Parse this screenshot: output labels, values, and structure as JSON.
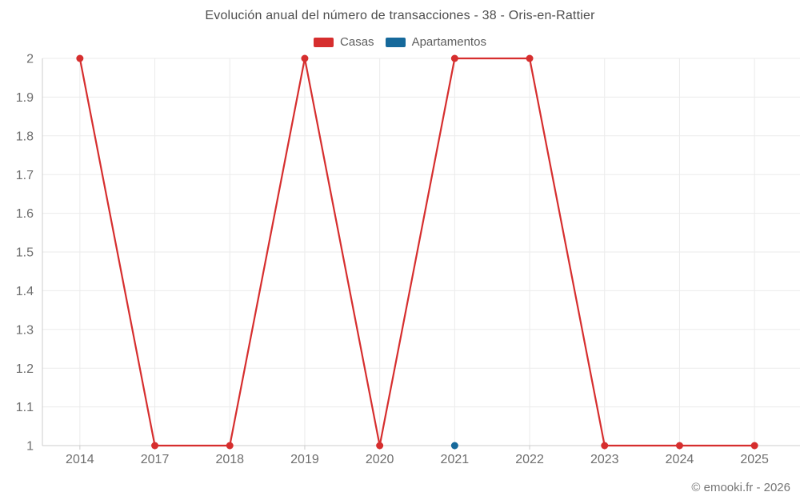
{
  "footer": "© emooki.fr - 2026",
  "chart_data": {
    "type": "line",
    "title": "Evolución anual del número de transacciones - 38 - Oris-en-Rattier",
    "categories": [
      "2014",
      "2017",
      "2018",
      "2019",
      "2020",
      "2021",
      "2022",
      "2023",
      "2024",
      "2025"
    ],
    "series": [
      {
        "name": "Casas",
        "color": "#d62e2e",
        "values": [
          2,
          1,
          1,
          2,
          1,
          2,
          2,
          1,
          1,
          1
        ]
      },
      {
        "name": "Apartamentos",
        "color": "#16699b",
        "values": [
          null,
          null,
          null,
          null,
          null,
          1,
          null,
          null,
          null,
          null
        ]
      }
    ],
    "xlabel": "",
    "ylabel": "",
    "ylim": [
      1,
      2
    ],
    "ytick_step": 0.1,
    "grid": true,
    "legend_position": "top"
  }
}
